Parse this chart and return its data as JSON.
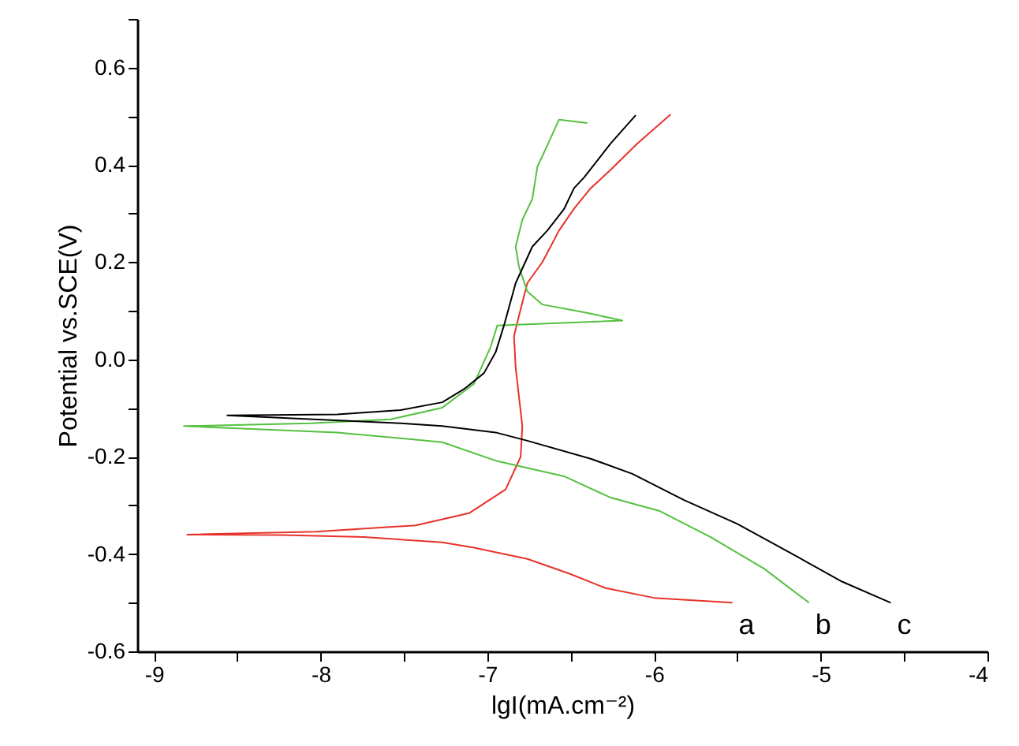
{
  "chart_data": {
    "type": "line",
    "xlabel": "lgI(mA.cm⁻²)",
    "ylabel": "Potential vs.SCE(V)",
    "xlim": [
      -9.1,
      -4
    ],
    "ylim": [
      -0.6,
      0.7
    ],
    "xticks": [
      -9,
      {
        "value": -8.5,
        "label": null
      },
      -8,
      {
        "value": -7.5,
        "label": null
      },
      -7,
      {
        "value": -6.5,
        "label": null
      },
      -6,
      {
        "value": -5.5,
        "label": null
      },
      -5,
      {
        "value": -4.5,
        "label": null
      },
      -4
    ],
    "yticks": [
      {
        "value": -0.6,
        "label": "-0.6"
      },
      {
        "value": -0.5,
        "label": null
      },
      {
        "value": -0.4,
        "label": "-0.4"
      },
      {
        "value": -0.3,
        "label": null
      },
      {
        "value": -0.2,
        "label": "-0.2"
      },
      {
        "value": -0.1,
        "label": null
      },
      {
        "value": 0,
        "label": "0.0"
      },
      {
        "value": 0.1,
        "label": null
      },
      {
        "value": 0.2,
        "label": "0.2"
      },
      {
        "value": 0.3,
        "label": null
      },
      {
        "value": 0.4,
        "label": "0.4"
      },
      {
        "value": 0.5,
        "label": null
      },
      {
        "value": 0.6,
        "label": "0.6"
      },
      {
        "value": 0.7,
        "label": null
      }
    ],
    "grid": false,
    "line_style": "solid",
    "marker": "none",
    "series": [
      {
        "name": "a",
        "color": "#e8312a",
        "x": [
          -5.53,
          -6.0,
          -6.29,
          -6.51,
          -6.76,
          -7.08,
          -7.27,
          -7.74,
          -8.22,
          -8.8,
          -8.03,
          -7.43,
          -7.11,
          -6.89,
          -6.8,
          -6.79,
          -6.83,
          -6.84,
          -6.81,
          -6.76,
          -6.67,
          -6.57,
          -6.48,
          -6.38,
          -6.26,
          -6.1,
          -5.9
        ],
        "values": [
          -0.5,
          -0.49,
          -0.47,
          -0.44,
          -0.41,
          -0.387,
          -0.376,
          -0.365,
          -0.361,
          -0.36,
          -0.354,
          -0.341,
          -0.316,
          -0.267,
          -0.2,
          -0.137,
          -0.017,
          0.048,
          0.09,
          0.157,
          0.2,
          0.265,
          0.31,
          0.352,
          0.39,
          0.444,
          0.504
        ]
      },
      {
        "name": "b",
        "color": "#55c040",
        "x": [
          -5.07,
          -5.34,
          -5.66,
          -5.97,
          -6.26,
          -6.54,
          -6.95,
          -7.27,
          -7.9,
          -8.82,
          -8.06,
          -7.58,
          -7.27,
          -7.08,
          -6.98,
          -6.94,
          -6.19,
          -6.42,
          -6.67,
          -6.76,
          -6.81,
          -6.83,
          -6.79,
          -6.73,
          -6.7,
          -6.64,
          -6.57,
          -6.4
        ],
        "values": [
          -0.5,
          -0.43,
          -0.365,
          -0.311,
          -0.284,
          -0.24,
          -0.208,
          -0.17,
          -0.15,
          -0.137,
          -0.131,
          -0.123,
          -0.099,
          -0.05,
          0.026,
          0.07,
          0.08,
          0.097,
          0.113,
          0.14,
          0.19,
          0.232,
          0.287,
          0.33,
          0.396,
          0.44,
          0.493,
          0.486
        ]
      },
      {
        "name": "c",
        "color": "#000000",
        "x": [
          -4.58,
          -4.87,
          -5.18,
          -5.5,
          -5.82,
          -6.13,
          -6.38,
          -6.76,
          -6.95,
          -7.27,
          -7.52,
          -8.56,
          -7.9,
          -7.52,
          -7.27,
          -7.14,
          -7.02,
          -6.95,
          -6.9,
          -6.83,
          -6.73,
          -6.64,
          -6.54,
          -6.48,
          -6.42,
          -6.26,
          -6.11
        ],
        "values": [
          -0.5,
          -0.457,
          -0.398,
          -0.338,
          -0.289,
          -0.235,
          -0.204,
          -0.167,
          -0.15,
          -0.137,
          -0.131,
          -0.115,
          -0.113,
          -0.104,
          -0.088,
          -0.061,
          -0.028,
          0.015,
          0.07,
          0.157,
          0.232,
          0.265,
          0.309,
          0.352,
          0.374,
          0.444,
          0.502
        ]
      }
    ]
  }
}
